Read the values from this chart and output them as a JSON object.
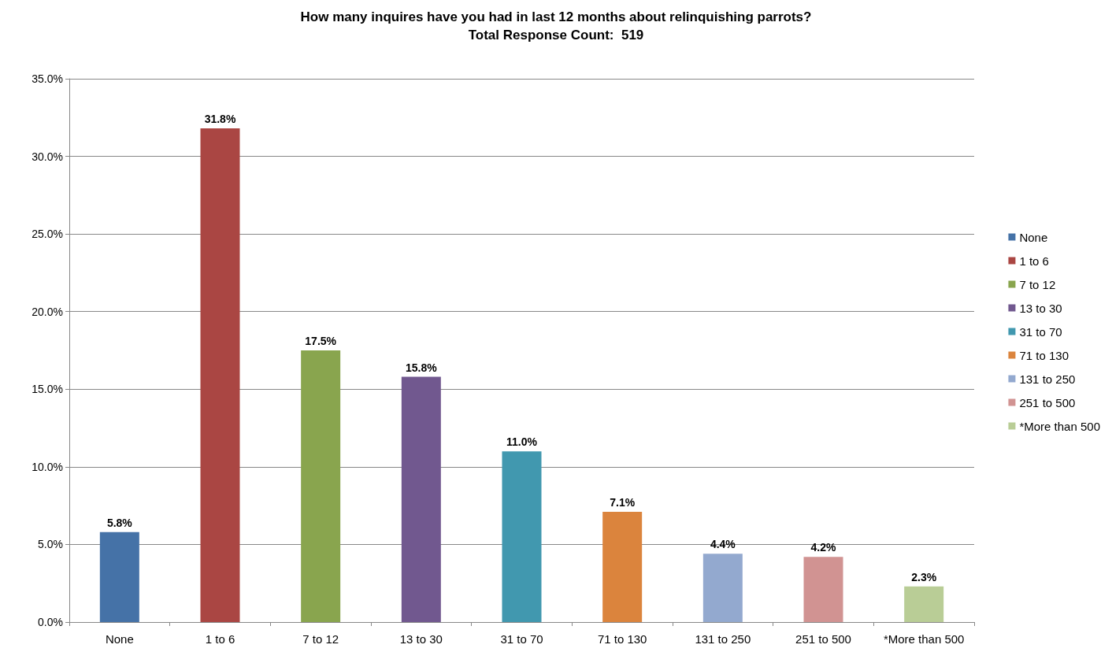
{
  "chart_data": {
    "type": "bar",
    "title": "How many inquires have you had in last 12 months about relinquishing parrots?",
    "subtitle": "Total Response Count:  519",
    "categories": [
      "None",
      "1 to 6",
      "7 to 12",
      "13 to 30",
      "31 to 70",
      "71 to 130",
      "131 to 250",
      "251 to 500",
      "*More than 500"
    ],
    "series": [
      {
        "name": "None",
        "color": "#4572a7",
        "values": [
          5.8,
          null,
          null,
          null,
          null,
          null,
          null,
          null,
          null
        ],
        "value_labels": [
          "5.8%",
          null,
          null,
          null,
          null,
          null,
          null,
          null,
          null
        ]
      },
      {
        "name": "1 to 6",
        "color": "#aa4643",
        "values": [
          null,
          31.8,
          null,
          null,
          null,
          null,
          null,
          null,
          null
        ],
        "value_labels": [
          null,
          "31.8%",
          null,
          null,
          null,
          null,
          null,
          null,
          null
        ]
      },
      {
        "name": "7 to 12",
        "color": "#89a54e",
        "values": [
          null,
          null,
          17.5,
          null,
          null,
          null,
          null,
          null,
          null
        ],
        "value_labels": [
          null,
          null,
          "17.5%",
          null,
          null,
          null,
          null,
          null,
          null
        ]
      },
      {
        "name": "13 to 30",
        "color": "#71588f",
        "values": [
          null,
          null,
          null,
          15.8,
          null,
          null,
          null,
          null,
          null
        ],
        "value_labels": [
          null,
          null,
          null,
          "15.8%",
          null,
          null,
          null,
          null,
          null
        ]
      },
      {
        "name": "31 to 70",
        "color": "#4198af",
        "values": [
          null,
          null,
          null,
          null,
          11.0,
          null,
          null,
          null,
          null
        ],
        "value_labels": [
          null,
          null,
          null,
          null,
          "11.0%",
          null,
          null,
          null,
          null
        ]
      },
      {
        "name": "71 to 130",
        "color": "#db843d",
        "values": [
          null,
          null,
          null,
          null,
          null,
          7.1,
          null,
          null,
          null
        ],
        "value_labels": [
          null,
          null,
          null,
          null,
          null,
          "7.1%",
          null,
          null,
          null
        ]
      },
      {
        "name": "131 to 250",
        "color": "#93a9cf",
        "values": [
          null,
          null,
          null,
          null,
          null,
          null,
          4.4,
          null,
          null
        ],
        "value_labels": [
          null,
          null,
          null,
          null,
          null,
          null,
          "4.4%",
          null,
          null
        ]
      },
      {
        "name": "251 to 500",
        "color": "#d19392",
        "values": [
          null,
          null,
          null,
          null,
          null,
          null,
          null,
          4.2,
          null
        ],
        "value_labels": [
          null,
          null,
          null,
          null,
          null,
          null,
          null,
          "4.2%",
          null
        ]
      },
      {
        "name": "*More than 500",
        "color": "#b9cd96",
        "values": [
          null,
          null,
          null,
          null,
          null,
          null,
          null,
          null,
          2.3
        ],
        "value_labels": [
          null,
          null,
          null,
          null,
          null,
          null,
          null,
          null,
          "2.3%"
        ]
      }
    ],
    "stacked": true,
    "ylim": [
      0,
      35
    ],
    "yticks": [
      {
        "value": 0,
        "label": "0.0%"
      },
      {
        "value": 5,
        "label": "5.0%"
      },
      {
        "value": 10,
        "label": "10.0%"
      },
      {
        "value": 15,
        "label": "15.0%"
      },
      {
        "value": 20,
        "label": "20.0%"
      },
      {
        "value": 25,
        "label": "25.0%"
      },
      {
        "value": 30,
        "label": "30.0%"
      },
      {
        "value": 35,
        "label": "35.0%"
      }
    ],
    "grid": "y",
    "legend": "right"
  }
}
